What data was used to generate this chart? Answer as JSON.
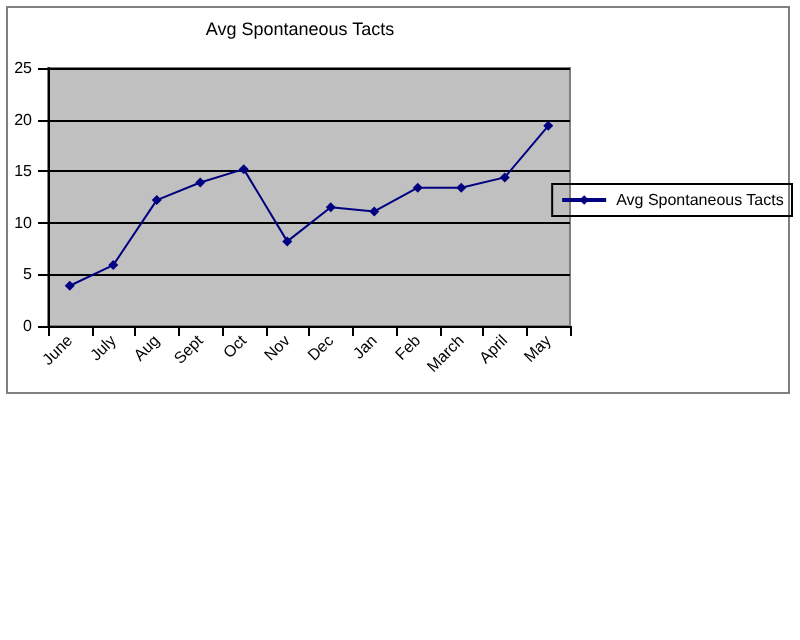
{
  "chart_data": {
    "type": "line",
    "title": "Avg Spontaneous Tacts",
    "categories": [
      "June",
      "July",
      "Aug",
      "Sept",
      "Oct",
      "Nov",
      "Dec",
      "Jan",
      "Feb",
      "March",
      "April",
      "May"
    ],
    "series": [
      {
        "name": "Avg Spontaneous Tacts",
        "color": "#000080",
        "values": [
          3.9,
          5.9,
          12.2,
          13.9,
          15.2,
          8.2,
          11.5,
          11.1,
          13.4,
          13.4,
          14.4,
          19.4
        ]
      }
    ],
    "ylim": [
      0,
      25
    ],
    "yticks": [
      0,
      5,
      10,
      15,
      20,
      25
    ],
    "grid": "y",
    "legend": "right",
    "marker": "diamond",
    "line_style": "solid"
  }
}
